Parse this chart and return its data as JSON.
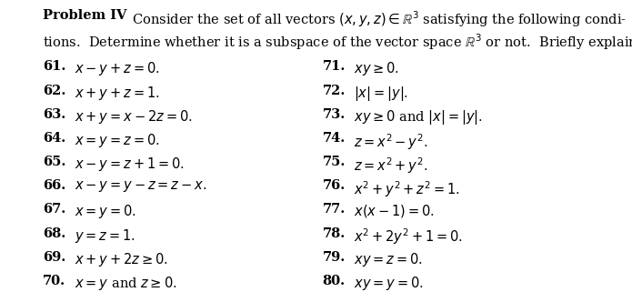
{
  "bg_color": "#ffffff",
  "text_color": "#000000",
  "fontsize": 10.5,
  "left_items": [
    [
      "61.",
      "$x - y + z = 0$."
    ],
    [
      "62.",
      "$x + y + z = 1$."
    ],
    [
      "63.",
      "$x + y = x - 2z = 0$."
    ],
    [
      "64.",
      "$x = y = z = 0$."
    ],
    [
      "65.",
      "$x - y = z + 1 = 0$."
    ],
    [
      "66.",
      "$x - y = y - z = z - x$."
    ],
    [
      "67.",
      "$x = y = 0$."
    ],
    [
      "68.",
      "$y = z = 1$."
    ],
    [
      "69.",
      "$x + y + 2z \\geq 0$."
    ],
    [
      "70.",
      "$x = y$ and $z \\geq 0$."
    ]
  ],
  "right_items": [
    [
      "71.",
      "$xy \\geq 0$."
    ],
    [
      "72.",
      "$|x| = |y|$."
    ],
    [
      "73.",
      "$xy \\geq 0$ and $|x| = |y|$."
    ],
    [
      "74.",
      "$z = x^2 - y^2$."
    ],
    [
      "75.",
      "$z = x^2 + y^2$."
    ],
    [
      "76.",
      "$x^2 + y^2 + z^2 = 1$."
    ],
    [
      "77.",
      "$x(x - 1) = 0$."
    ],
    [
      "78.",
      "$x^2 + 2y^2 + 1 = 0$."
    ],
    [
      "79.",
      "$xy = z = 0$."
    ],
    [
      "80.",
      "$xy = y = 0$."
    ]
  ],
  "header_line1_bold": "Problem IV",
  "header_line1_rest": "  Consider the set of all vectors $(x, y, z) \\in \\mathbb{R}^3$ satisfying the following condi-",
  "header_line2": "tions.  Determine whether it is a subspace of the vector space $\\mathbb{R}^3$ or not.  Briefly explain.",
  "fig_width": 6.95,
  "fig_height": 3.32,
  "dpi": 100
}
